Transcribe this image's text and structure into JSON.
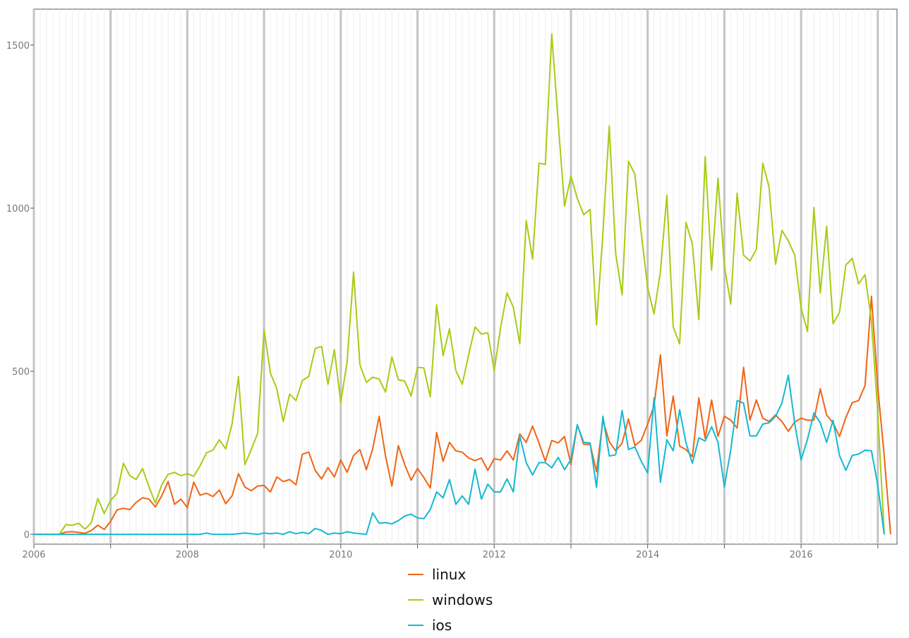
{
  "chart_data": {
    "type": "line",
    "title": "",
    "xlabel": "",
    "ylabel": "",
    "xlim": [
      2006.0,
      2017.25
    ],
    "ylim": [
      -30,
      1610
    ],
    "x_start_year": 2006,
    "x_ticks": [
      "2006",
      "2008",
      "2010",
      "2012",
      "2014",
      "2016"
    ],
    "y_ticks": [
      "0",
      "500",
      "1000",
      "1500"
    ],
    "legend_position": "bottom",
    "grid": true,
    "series": [
      {
        "name": "linux",
        "color": "#f06414",
        "values": [
          0,
          0,
          0,
          0,
          0,
          7,
          8,
          6,
          3,
          12,
          28,
          15,
          40,
          75,
          80,
          76,
          98,
          112,
          108,
          84,
          118,
          162,
          92,
          108,
          82,
          160,
          120,
          126,
          116,
          136,
          94,
          118,
          186,
          145,
          134,
          148,
          150,
          130,
          176,
          162,
          168,
          152,
          246,
          252,
          196,
          170,
          205,
          176,
          228,
          190,
          242,
          260,
          198,
          262,
          362,
          240,
          148,
          272,
          214,
          166,
          202,
          174,
          142,
          312,
          224,
          282,
          256,
          252,
          234,
          226,
          234,
          196,
          232,
          228,
          256,
          228,
          308,
          282,
          332,
          280,
          224,
          288,
          280,
          300,
          214,
          336,
          276,
          276,
          192,
          350,
          284,
          256,
          280,
          354,
          272,
          288,
          338,
          394,
          550,
          302,
          424,
          270,
          260,
          238,
          418,
          294,
          412,
          300,
          362,
          350,
          326,
          512,
          350,
          412,
          356,
          346,
          366,
          346,
          316,
          344,
          356,
          350,
          350,
          446,
          366,
          342,
          300,
          358,
          404,
          410,
          456,
          730,
          450,
          240,
          0
        ]
      },
      {
        "name": "windows",
        "color": "#a6cc14",
        "values": [
          0,
          0,
          0,
          0,
          0,
          30,
          28,
          34,
          16,
          36,
          110,
          64,
          104,
          126,
          218,
          180,
          168,
          202,
          146,
          96,
          152,
          184,
          190,
          180,
          186,
          178,
          210,
          250,
          258,
          290,
          262,
          338,
          484,
          214,
          260,
          310,
          628,
          494,
          446,
          346,
          430,
          410,
          472,
          484,
          570,
          576,
          460,
          566,
          404,
          530,
          804,
          520,
          466,
          482,
          476,
          436,
          544,
          474,
          470,
          424,
          512,
          510,
          422,
          704,
          548,
          630,
          502,
          460,
          550,
          636,
          614,
          618,
          502,
          634,
          740,
          696,
          584,
          962,
          844,
          1138,
          1134,
          1534,
          1264,
          1006,
          1098,
          1030,
          980,
          996,
          642,
          924,
          1252,
          860,
          734,
          1144,
          1104,
          924,
          756,
          676,
          806,
          1040,
          636,
          584,
          956,
          890,
          658,
          1158,
          810,
          1092,
          822,
          706,
          1046,
          856,
          838,
          874,
          1138,
          1064,
          828,
          932,
          900,
          856,
          694,
          622,
          1002,
          740,
          944,
          646,
          680,
          826,
          846,
          768,
          796,
          654,
          370,
          0
        ]
      },
      {
        "name": "ios",
        "color": "#14b9d2",
        "values": [
          0,
          0,
          0,
          0,
          0,
          0,
          0,
          0,
          0,
          0,
          0,
          0,
          0,
          0,
          0,
          0,
          0,
          0,
          0,
          0,
          0,
          0,
          0,
          0,
          0,
          0,
          0,
          4,
          0,
          0,
          0,
          0,
          2,
          4,
          2,
          0,
          4,
          2,
          4,
          0,
          8,
          2,
          6,
          2,
          18,
          12,
          0,
          4,
          2,
          8,
          4,
          2,
          0,
          66,
          34,
          36,
          32,
          42,
          56,
          62,
          50,
          48,
          76,
          130,
          112,
          168,
          92,
          118,
          92,
          200,
          108,
          154,
          130,
          130,
          170,
          130,
          302,
          220,
          182,
          220,
          220,
          204,
          236,
          198,
          230,
          336,
          282,
          280,
          144,
          362,
          240,
          244,
          380,
          260,
          268,
          224,
          188,
          418,
          160,
          290,
          256,
          382,
          280,
          218,
          296,
          286,
          330,
          282,
          146,
          260,
          410,
          402,
          302,
          302,
          338,
          342,
          362,
          402,
          488,
          340,
          228,
          292,
          372,
          342,
          282,
          350,
          242,
          196,
          242,
          246,
          258,
          256,
          150,
          0
        ]
      }
    ]
  }
}
